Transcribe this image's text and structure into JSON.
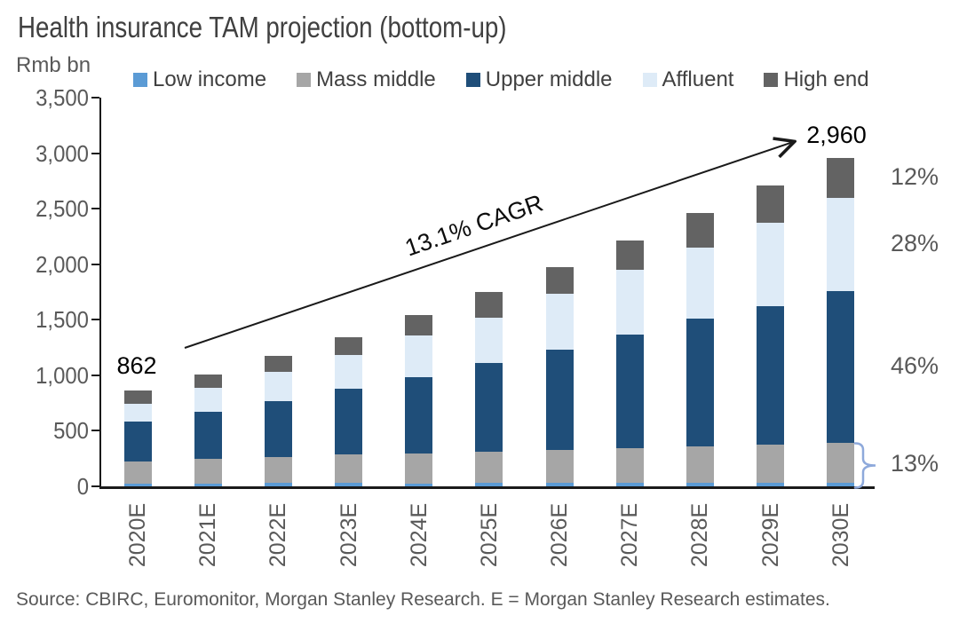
{
  "title": "Health insurance TAM projection (bottom-up)",
  "source_note": "Source: CBIRC, Euromonitor, Morgan Stanley Research. E = Morgan Stanley Research estimates.",
  "chart_data": {
    "type": "bar",
    "stacked": true,
    "title": "Health insurance TAM projection (bottom-up)",
    "unit_label": "Rmb bn",
    "xlabel": "",
    "ylabel": "Rmb bn",
    "ylim": [
      0,
      3500
    ],
    "ytick_step": 500,
    "ytick_labels": [
      "0",
      "500",
      "1,000",
      "1,500",
      "2,000",
      "2,500",
      "3,000",
      "3,500"
    ],
    "gridlines": false,
    "legend_position": "top",
    "categories": [
      "2020E",
      "2021E",
      "2022E",
      "2023E",
      "2024E",
      "2025E",
      "2026E",
      "2027E",
      "2028E",
      "2029E",
      "2030E"
    ],
    "series": [
      {
        "name": "Low income",
        "color": "#5B9BD5",
        "values": [
          25,
          27,
          30,
          28,
          27,
          28,
          28,
          28,
          28,
          32,
          35
        ]
      },
      {
        "name": "Mass middle",
        "color": "#A6A6A6",
        "values": [
          200,
          221,
          235,
          262,
          266,
          282,
          300,
          312,
          330,
          346,
          360
        ]
      },
      {
        "name": "Upper middle",
        "color": "#1F4E79",
        "values": [
          357,
          421,
          503,
          590,
          693,
          804,
          905,
          1026,
          1150,
          1247,
          1365
        ]
      },
      {
        "name": "Affluent",
        "color": "#DEEBF7",
        "values": [
          163,
          221,
          266,
          306,
          373,
          408,
          503,
          586,
          645,
          750,
          840
        ]
      },
      {
        "name": "High end",
        "color": "#636363",
        "values": [
          117,
          120,
          141,
          160,
          186,
          230,
          240,
          258,
          305,
          336,
          360
        ]
      }
    ],
    "totals": [
      862,
      1010,
      1175,
      1346,
      1545,
      1752,
      1976,
      2210,
      2458,
      2711,
      2960
    ],
    "annotations": {
      "first_bar_value": "862",
      "last_bar_value": "2,960",
      "cagr_label": "13.1% CAGR",
      "right_percent_labels": [
        "12%",
        "28%",
        "46%",
        "13%"
      ],
      "right_percent_meaning": [
        "High end share of 2030E",
        "Affluent share of 2030E",
        "Upper middle share of 2030E",
        "Mass middle + Low income share of 2030E"
      ]
    },
    "accent_colors": {
      "brace": "#8EA9DB",
      "axis": "#1a1a1a",
      "arrow": "#1a1a1a"
    }
  }
}
